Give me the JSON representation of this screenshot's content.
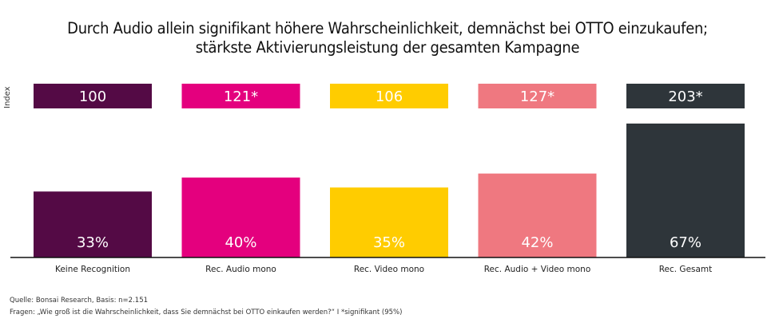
{
  "chart_data": {
    "type": "bar",
    "title": "Durch Audio allein signifikant höhere Wahrscheinlichkeit, demnächst bei OTTO einzukaufen; stärkste Aktivierungsleistung der gesamten Kampagne",
    "title_lines": [
      "Durch Audio allein signifikant höhere Wahrscheinlichkeit, demnächst bei OTTO einzukaufen;",
      "stärkste Aktivierungsleistung der gesamten Kampagne"
    ],
    "xlabel": "",
    "ylabel": "",
    "index_label": "Index",
    "categories": [
      "Keine Recognition",
      "Rec. Audio mono",
      "Rec. Video mono",
      "Rec. Audio + Video mono",
      "Rec. Gesamt"
    ],
    "values": [
      33,
      40,
      35,
      42,
      67
    ],
    "value_labels": [
      "33%",
      "40%",
      "35%",
      "42%",
      "67%"
    ],
    "index_values": [
      100,
      121,
      106,
      127,
      203
    ],
    "index_labels": [
      "100",
      "121*",
      "106",
      "127*",
      "203*"
    ],
    "significant": [
      false,
      true,
      false,
      true,
      true
    ],
    "colors": [
      "#540A45",
      "#E4007E",
      "#FFCC00",
      "#EF7880",
      "#2E353A"
    ],
    "ylim": [
      0,
      67
    ],
    "grid": false,
    "legend": "none"
  },
  "footer": {
    "source": "Quelle: Bonsai Research, Basis: n=2.151",
    "question": "Fragen: „Wie groß ist die Wahrscheinlichkeit, dass Sie demnächst bei OTTO einkaufen werden?“ I *signifikant (95%)"
  }
}
